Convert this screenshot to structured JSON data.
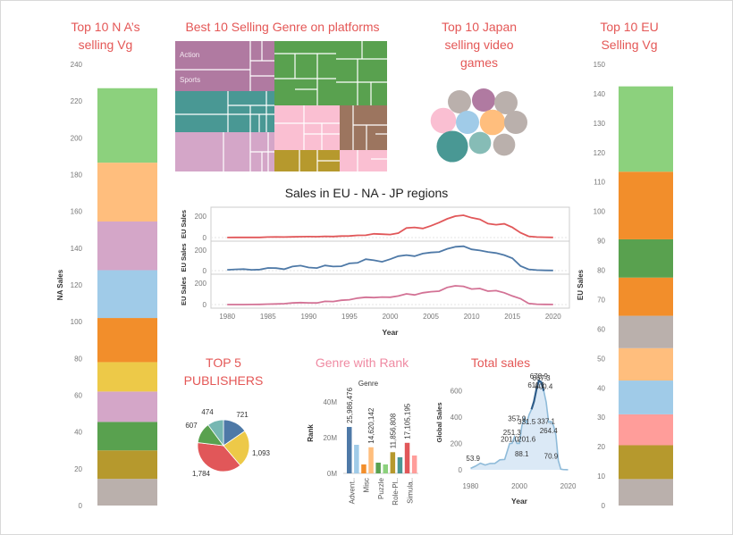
{
  "titles": {
    "na": "Top 10 N A’s selling Vg",
    "treemap": "Best 10 Selling Genre on platforms",
    "japan": "Top 10 Japan selling video games",
    "eu": "Top 10 EU Selling Vg",
    "regions": "Sales in EU - NA - JP regions",
    "publishers": "TOP 5 PUBLISHERS",
    "genre_rank": "Genre with Rank",
    "total": "Total sales"
  },
  "chart_data": [
    {
      "id": "na_stack",
      "type": "bar",
      "title": "Top 10 N A’s selling Vg",
      "ylabel": "NA Sales",
      "ylim": [
        0,
        240
      ],
      "yticks": [
        0,
        20,
        40,
        60,
        80,
        100,
        120,
        140,
        160,
        180,
        200,
        220,
        240
      ],
      "segments": [
        {
          "value": 14.5,
          "color": "#bab0ac"
        },
        {
          "value": 15.5,
          "color": "#b6992d"
        },
        {
          "value": 15.5,
          "color": "#59a14f"
        },
        {
          "value": 16.5,
          "color": "#d4a6c8"
        },
        {
          "value": 16.0,
          "color": "#edc948"
        },
        {
          "value": 24.0,
          "color": "#f28e2b"
        },
        {
          "value": 26.0,
          "color": "#a0cbe8"
        },
        {
          "value": 26.5,
          "color": "#d4a6c8"
        },
        {
          "value": 32.0,
          "color": "#ffbe7d"
        },
        {
          "value": 40.5,
          "color": "#8cd17d"
        }
      ]
    },
    {
      "id": "eu_stack",
      "type": "bar",
      "title": "Top 10 EU Selling Vg",
      "ylabel": "EU Sales",
      "ylim": [
        0,
        150
      ],
      "yticks": [
        0,
        10,
        20,
        30,
        40,
        50,
        60,
        70,
        80,
        90,
        100,
        110,
        120,
        130,
        140,
        150
      ],
      "segments": [
        {
          "value": 9.0,
          "color": "#bab0ac"
        },
        {
          "value": 11.5,
          "color": "#b6992d"
        },
        {
          "value": 10.5,
          "color": "#ff9d9a"
        },
        {
          "value": 11.5,
          "color": "#a0cbe8"
        },
        {
          "value": 11.0,
          "color": "#ffbe7d"
        },
        {
          "value": 11.0,
          "color": "#bab0ac"
        },
        {
          "value": 13.0,
          "color": "#f28e2b"
        },
        {
          "value": 13.0,
          "color": "#59a14f"
        },
        {
          "value": 23.0,
          "color": "#f28e2b"
        },
        {
          "value": 29.0,
          "color": "#8cd17d"
        }
      ]
    },
    {
      "id": "treemap",
      "type": "heatmap",
      "title": "Best 10 Selling Genre on platforms",
      "labels": [
        "Action",
        "Sports"
      ]
    },
    {
      "id": "japan_bubbles",
      "type": "scatter",
      "title": "Top 10 Japan selling video games",
      "bubbles": [
        {
          "size": 1.0,
          "color": "#bab0ac"
        },
        {
          "size": 1.0,
          "color": "#b07aa1"
        },
        {
          "size": 1.0,
          "color": "#bab0ac"
        },
        {
          "size": 1.1,
          "color": "#fabfd2"
        },
        {
          "size": 1.0,
          "color": "#a0cbe8"
        },
        {
          "size": 1.1,
          "color": "#ffbe7d"
        },
        {
          "size": 1.0,
          "color": "#bab0ac"
        },
        {
          "size": 1.35,
          "color": "#499894"
        },
        {
          "size": 0.95,
          "color": "#86bcb6"
        },
        {
          "size": 0.95,
          "color": "#bab0ac"
        }
      ]
    },
    {
      "id": "regions",
      "type": "line",
      "title": "Sales in EU - NA - JP regions",
      "xlabel": "Year",
      "xticks": [
        1980,
        1985,
        1990,
        1995,
        2000,
        2005,
        2010,
        2015,
        2020
      ],
      "xlim": [
        1978,
        2022
      ],
      "panels": [
        {
          "ylabel": "EU Sales",
          "ymax": 250,
          "yticks": [
            0,
            200
          ],
          "color": "#e15759",
          "x": [
            1980,
            1981,
            1982,
            1983,
            1984,
            1985,
            1986,
            1987,
            1988,
            1989,
            1990,
            1991,
            1992,
            1993,
            1994,
            1995,
            1996,
            1997,
            1998,
            1999,
            2000,
            2001,
            2002,
            2003,
            2004,
            2005,
            2006,
            2007,
            2008,
            2009,
            2010,
            2011,
            2012,
            2013,
            2014,
            2015,
            2016,
            2017,
            2018,
            2019,
            2020
          ],
          "y": [
            1,
            2,
            2,
            2,
            2,
            5,
            6,
            5,
            7,
            8,
            9,
            8,
            12,
            10,
            14,
            15,
            21,
            22,
            35,
            32,
            28,
            42,
            90,
            95,
            85,
            110,
            140,
            175,
            200,
            208,
            185,
            170,
            130,
            120,
            128,
            95,
            45,
            12,
            5,
            3,
            2
          ]
        },
        {
          "ylabel": "EU Sales",
          "ymax": 250,
          "yticks": [
            0,
            200
          ],
          "color": "#4e79a7",
          "x": [
            1980,
            1981,
            1982,
            1983,
            1984,
            1985,
            1986,
            1987,
            1988,
            1989,
            1990,
            1991,
            1992,
            1993,
            1994,
            1995,
            1996,
            1997,
            1998,
            1999,
            2000,
            2001,
            2002,
            2003,
            2004,
            2005,
            2006,
            2007,
            2008,
            2009,
            2010,
            2011,
            2012,
            2013,
            2014,
            2015,
            2016,
            2017,
            2018,
            2019,
            2020
          ],
          "y": [
            8,
            12,
            15,
            8,
            10,
            26,
            24,
            14,
            40,
            48,
            30,
            25,
            50,
            40,
            42,
            70,
            75,
            110,
            100,
            85,
            110,
            140,
            150,
            140,
            165,
            175,
            180,
            210,
            230,
            235,
            205,
            195,
            180,
            170,
            150,
            120,
            45,
            12,
            5,
            3,
            2
          ]
        },
        {
          "ylabel": "EU Sales",
          "ymax": 250,
          "yticks": [
            0,
            200
          ],
          "color": "#d37295",
          "x": [
            1980,
            1981,
            1982,
            1983,
            1984,
            1985,
            1986,
            1987,
            1988,
            1989,
            1990,
            1991,
            1992,
            1993,
            1994,
            1995,
            1996,
            1997,
            1998,
            1999,
            2000,
            2001,
            2002,
            2003,
            2004,
            2005,
            2006,
            2007,
            2008,
            2009,
            2010,
            2011,
            2012,
            2013,
            2014,
            2015,
            2016,
            2017,
            2018,
            2019,
            2020
          ],
          "y": [
            0,
            0,
            0,
            1,
            2,
            4,
            6,
            8,
            15,
            18,
            16,
            15,
            30,
            28,
            40,
            45,
            60,
            68,
            65,
            70,
            68,
            80,
            100,
            90,
            110,
            120,
            125,
            160,
            175,
            170,
            145,
            150,
            125,
            130,
            110,
            80,
            55,
            10,
            3,
            2,
            1
          ]
        }
      ]
    },
    {
      "id": "publishers",
      "type": "pie",
      "title": "TOP 5 PUBLISHERS",
      "slices": [
        {
          "label": "721",
          "value": 721,
          "color": "#4e79a7"
        },
        {
          "label": "1,093",
          "value": 1093,
          "color": "#edc948"
        },
        {
          "label": "1,784",
          "value": 1784,
          "color": "#e15759"
        },
        {
          "label": "607",
          "value": 607,
          "color": "#59a14f"
        },
        {
          "label": "474",
          "value": 474,
          "color": "#76b7b2"
        }
      ]
    },
    {
      "id": "genre_rank",
      "type": "bar",
      "title": "Genre with Rank",
      "header": "Genre",
      "ylabel": "Rank",
      "ylim": [
        0,
        45000000
      ],
      "yticks": [
        {
          "v": 0,
          "label": "0M"
        },
        {
          "v": 20000000,
          "label": "20M"
        },
        {
          "v": 40000000,
          "label": "40M"
        }
      ],
      "categories": [
        "Advent..",
        "Misc",
        "Puzzle",
        "Role-Pl..",
        "Simula.."
      ],
      "bars": [
        {
          "value": 25986476,
          "color": "#4e79a7"
        },
        {
          "value": 16000000,
          "color": "#a0cbe8"
        },
        {
          "value": 5000000,
          "color": "#f28e2b"
        },
        {
          "value": 14620142,
          "color": "#ffbe7d"
        },
        {
          "value": 6000000,
          "color": "#59a14f"
        },
        {
          "value": 5000000,
          "color": "#8cd17d"
        },
        {
          "value": 11856808,
          "color": "#b6992d"
        },
        {
          "value": 9000000,
          "color": "#499894"
        },
        {
          "value": 17105195,
          "color": "#e15759"
        },
        {
          "value": 10000000,
          "color": "#ff9d9a"
        }
      ],
      "value_labels": [
        {
          "bar": 0,
          "label": "25,986,476"
        },
        {
          "bar": 3,
          "label": "14,620,142"
        },
        {
          "bar": 6,
          "label": "11,856,808"
        },
        {
          "bar": 8,
          "label": "17,105,195"
        }
      ]
    },
    {
      "id": "total_sales",
      "type": "area",
      "title": "Total sales",
      "xlabel": "Year",
      "ylabel": "Global Sales",
      "xlim": [
        1978,
        2022
      ],
      "ylim": [
        0,
        720
      ],
      "xticks": [
        1980,
        2000,
        2020
      ],
      "yticks": [
        0,
        200,
        400,
        600
      ],
      "x": [
        1980,
        1982,
        1984,
        1986,
        1988,
        1990,
        1992,
        1994,
        1996,
        1997,
        1998,
        1999,
        2000,
        2001,
        2002,
        2003,
        2004,
        2005,
        2006,
        2007,
        2008,
        2009,
        2010,
        2011,
        2012,
        2013,
        2014,
        2015,
        2016,
        2017,
        2018,
        2020
      ],
      "y": [
        11,
        28,
        50,
        37,
        48,
        49,
        76,
        79,
        200,
        201,
        251,
        201,
        201,
        331,
        395,
        357,
        419,
        460,
        521,
        611,
        678,
        667,
        600,
        515,
        363,
        368,
        337,
        264,
        70,
        5,
        2,
        1
      ],
      "annotations": [
        {
          "x": 1981,
          "y": 53.9,
          "label": "53.9"
        },
        {
          "x": 1996,
          "y": 201.0,
          "label": "201.0"
        },
        {
          "x": 1997,
          "y": 251.3,
          "label": "251.3"
        },
        {
          "x": 1999,
          "y": 357.9,
          "label": "357.9"
        },
        {
          "x": 2001,
          "y": 88.1,
          "label": "88.1"
        },
        {
          "x": 2003,
          "y": 201.6,
          "label": "201.6"
        },
        {
          "x": 2003,
          "y": 331.5,
          "label": "331.5"
        },
        {
          "x": 2007,
          "y": 611.1,
          "label": "611.1"
        },
        {
          "x": 2008,
          "y": 678.9,
          "label": "678.9"
        },
        {
          "x": 2009,
          "y": 667.3,
          "label": "667.3"
        },
        {
          "x": 2010,
          "y": 600.4,
          "label": "600.4"
        },
        {
          "x": 2011,
          "y": 337.1,
          "label": "337.1"
        },
        {
          "x": 2012,
          "y": 264.4,
          "label": "264.4"
        },
        {
          "x": 2013,
          "y": 70.9,
          "label": "70.9"
        }
      ]
    }
  ]
}
